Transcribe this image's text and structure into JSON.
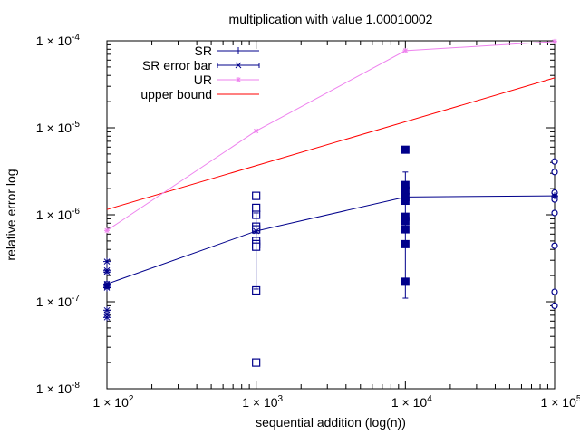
{
  "chart_data": {
    "type": "scatter",
    "title": "multiplication with value 1.00010002",
    "xlabel": "sequential addition (log(n))",
    "ylabel": "relative error log",
    "x_scale": "log",
    "y_scale": "log",
    "xlim": [
      100,
      100000
    ],
    "ylim": [
      1e-08,
      0.0001
    ],
    "x_ticks": [
      {
        "value": 100,
        "base": "1 × 10",
        "exp": "2"
      },
      {
        "value": 1000,
        "base": "1 × 10",
        "exp": "3"
      },
      {
        "value": 10000,
        "base": "1 × 10",
        "exp": "4"
      },
      {
        "value": 100000,
        "base": "1 × 10",
        "exp": "5"
      }
    ],
    "y_ticks": [
      {
        "value": 1e-08,
        "base": "1 × 10",
        "exp": "-8"
      },
      {
        "value": 1e-07,
        "base": "1 × 10",
        "exp": "-7"
      },
      {
        "value": 1e-06,
        "base": "1 × 10",
        "exp": "-6"
      },
      {
        "value": 1e-05,
        "base": "1 × 10",
        "exp": "-5"
      },
      {
        "value": 0.0001,
        "base": "1 × 10",
        "exp": "-4"
      }
    ],
    "grid": false,
    "legend_position": "top-left",
    "series": [
      {
        "name": "SR",
        "style": "line-plus",
        "color": "#00008b",
        "x": [
          100,
          1000,
          10000,
          100000
        ],
        "y": [
          1.6e-07,
          6.5e-07,
          1.6e-06,
          1.65e-06
        ]
      },
      {
        "name": "SR error bar",
        "style": "errorbar",
        "color": "#00008b",
        "x": [
          100,
          1000,
          10000,
          100000
        ],
        "y": [
          1.6e-07,
          6.5e-07,
          1.6e-06,
          1.65e-06
        ],
        "ylow": [
          1.5e-07,
          1.4e-07,
          1.1e-07,
          1.65e-06
        ],
        "yhigh": [
          1.7e-07,
          1.05e-06,
          3.1e-06,
          1.65e-06
        ]
      },
      {
        "name": "UR",
        "style": "line-star",
        "color": "#ee82ee",
        "x": [
          100,
          1000,
          10000,
          100000
        ],
        "y": [
          6.6e-07,
          9.2e-06,
          7.7e-05,
          9.8e-05
        ]
      },
      {
        "name": "upper bound",
        "style": "line",
        "color": "#ff0000",
        "x": [
          100,
          100000
        ],
        "y": [
          1.15e-06,
          3.75e-05
        ]
      }
    ],
    "samples": [
      {
        "x": 100,
        "marker": "asterisk",
        "color": "#00008b",
        "y": [
          2.9e-07,
          2.3e-07,
          2.2e-07,
          1.55e-07,
          1.5e-07,
          1.45e-07,
          8e-08,
          7.2e-08,
          6.6e-08
        ]
      },
      {
        "x": 1000,
        "marker": "open-square",
        "color": "#00008b",
        "y": [
          1.65e-06,
          1.2e-06,
          1e-06,
          7.3e-07,
          6.8e-07,
          5e-07,
          4.6e-07,
          4.3e-07,
          1.35e-07,
          2e-08
        ]
      },
      {
        "x": 10000,
        "marker": "filled-square",
        "color": "#00008b",
        "y": [
          5.6e-06,
          2.2e-06,
          1.9e-06,
          1.6e-06,
          1.45e-06,
          9.5e-07,
          8.5e-07,
          6.8e-07,
          4.6e-07,
          1.7e-07
        ]
      },
      {
        "x": 100000,
        "marker": "open-circle",
        "color": "#00008b",
        "y": [
          4.1e-06,
          3.1e-06,
          1.8e-06,
          1.6e-06,
          1.5e-06,
          1.05e-06,
          4.4e-07,
          1.3e-07,
          9e-08
        ]
      }
    ]
  }
}
